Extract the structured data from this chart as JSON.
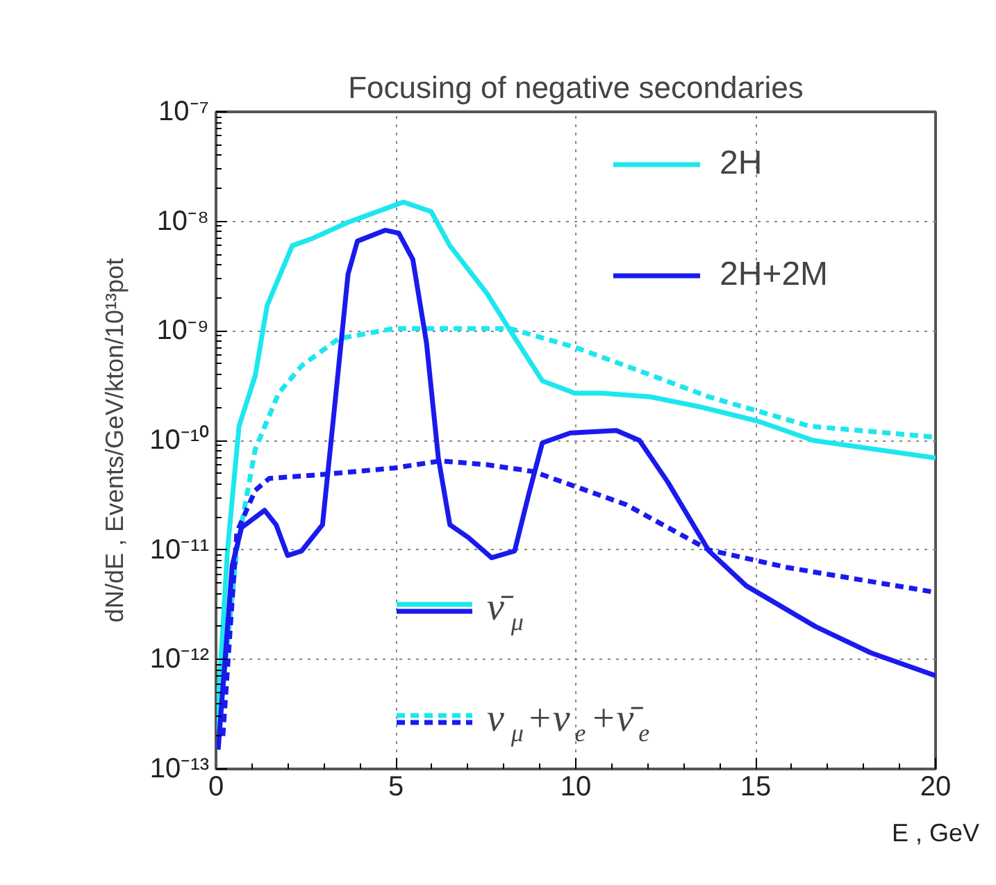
{
  "chart_data": {
    "type": "line",
    "title": "Focusing of negative secondaries",
    "xlabel": "E , GeV",
    "ylabel": "dN/dE , Events/GeV/kton/10¹³pot",
    "xlim": [
      0,
      20
    ],
    "xticks": [
      0,
      5,
      10,
      15,
      20
    ],
    "ylim": [
      1e-13,
      1e-07
    ],
    "log": true,
    "grid": true,
    "yticks": [
      {
        "value": 1e-13,
        "label": "10⁻¹³"
      },
      {
        "value": 1e-12,
        "label": "10⁻¹²"
      },
      {
        "value": 1e-11,
        "label": "10⁻¹¹"
      },
      {
        "value": 1e-10,
        "label": "10⁻¹⁰"
      },
      {
        "value": 1e-09,
        "label": "10⁻⁹"
      },
      {
        "value": 1e-08,
        "label": "10⁻⁸"
      },
      {
        "value": 1e-07,
        "label": "10⁻⁷"
      }
    ],
    "annotations": [
      "2H",
      "2H+2M",
      "ν̄$_{μ}$",
      "ν$_{μ}$+ν$_{e}$+ν̄$_{e}$"
    ],
    "series": [
      {
        "color": "#1ee6ee",
        "line_style": "solid",
        "x": [
          0,
          0.32,
          0.64,
          1.09,
          1.42,
          2.12,
          2.64,
          3.67,
          5.21,
          5.98,
          6.5,
          7.53,
          8.3,
          9.07,
          9.97,
          10.73,
          12.07,
          13.53,
          15.06,
          16.6,
          20
        ],
        "values": [
          1.8e-13,
          1e-11,
          1.35e-10,
          3.9e-10,
          1.7e-09,
          6e-09,
          6.9e-09,
          9.8e-09,
          1.5e-08,
          1.23e-08,
          6e-09,
          2.2e-09,
          8.7e-10,
          3.5e-10,
          2.7e-10,
          2.7e-10,
          2.5e-10,
          2e-10,
          1.5e-10,
          1e-10,
          6.9e-11
        ]
      },
      {
        "color": "#1ee6ee",
        "line_style": "dashed",
        "x": [
          0.19,
          0.58,
          1.09,
          1.74,
          2.38,
          3.41,
          4.95,
          6.5,
          8.17,
          9.97,
          11.39,
          13.7,
          16.5,
          20
        ],
        "values": [
          5.4e-13,
          1e-11,
          8.3e-11,
          2.7e-10,
          4.8e-10,
          8.5e-10,
          1.05e-09,
          1.05e-09,
          1.05e-09,
          7.1e-10,
          4.8e-10,
          2.5e-10,
          1.35e-10,
          1.07e-10
        ]
      },
      {
        "color": "#1a1aee",
        "line_style": "solid",
        "x": [
          0.06,
          0.45,
          0.71,
          1.35,
          1.67,
          1.99,
          2.38,
          2.96,
          3.28,
          3.67,
          3.93,
          4.7,
          5.08,
          5.47,
          5.85,
          6.18,
          6.5,
          7.01,
          7.66,
          8.3,
          8.69,
          9.07,
          9.85,
          11.13,
          11.77,
          12.55,
          13.7,
          14.74,
          16.66,
          18.2,
          20
        ],
        "values": [
          1.5e-13,
          7.2e-12,
          1.6e-11,
          2.3e-11,
          1.7e-11,
          8.9e-12,
          9.8e-12,
          1.7e-11,
          1.8e-10,
          3.3e-09,
          6.6e-09,
          8.3e-09,
          7.8e-09,
          4.5e-09,
          7.8e-10,
          6.9e-11,
          1.7e-11,
          1.3e-11,
          8.5e-12,
          9.8e-12,
          3.2e-11,
          9.5e-11,
          1.17e-10,
          1.23e-10,
          1e-10,
          4.2e-11,
          9.8e-12,
          4.7e-12,
          2e-12,
          1.15e-12,
          7.1e-13
        ]
      },
      {
        "color": "#1a1aee",
        "line_style": "dashed",
        "x": [
          0.19,
          0.58,
          1.09,
          1.48,
          3.02,
          4.95,
          6.24,
          7.53,
          8.82,
          10.62,
          11.39,
          13.7,
          15.89,
          20
        ],
        "values": [
          2e-13,
          1.45e-11,
          3.5e-11,
          4.5e-11,
          4.9e-11,
          5.6e-11,
          6.5e-11,
          6e-11,
          5.2e-11,
          3.2e-11,
          2.6e-11,
          1e-11,
          6.9e-12,
          4.1e-12
        ]
      }
    ]
  }
}
